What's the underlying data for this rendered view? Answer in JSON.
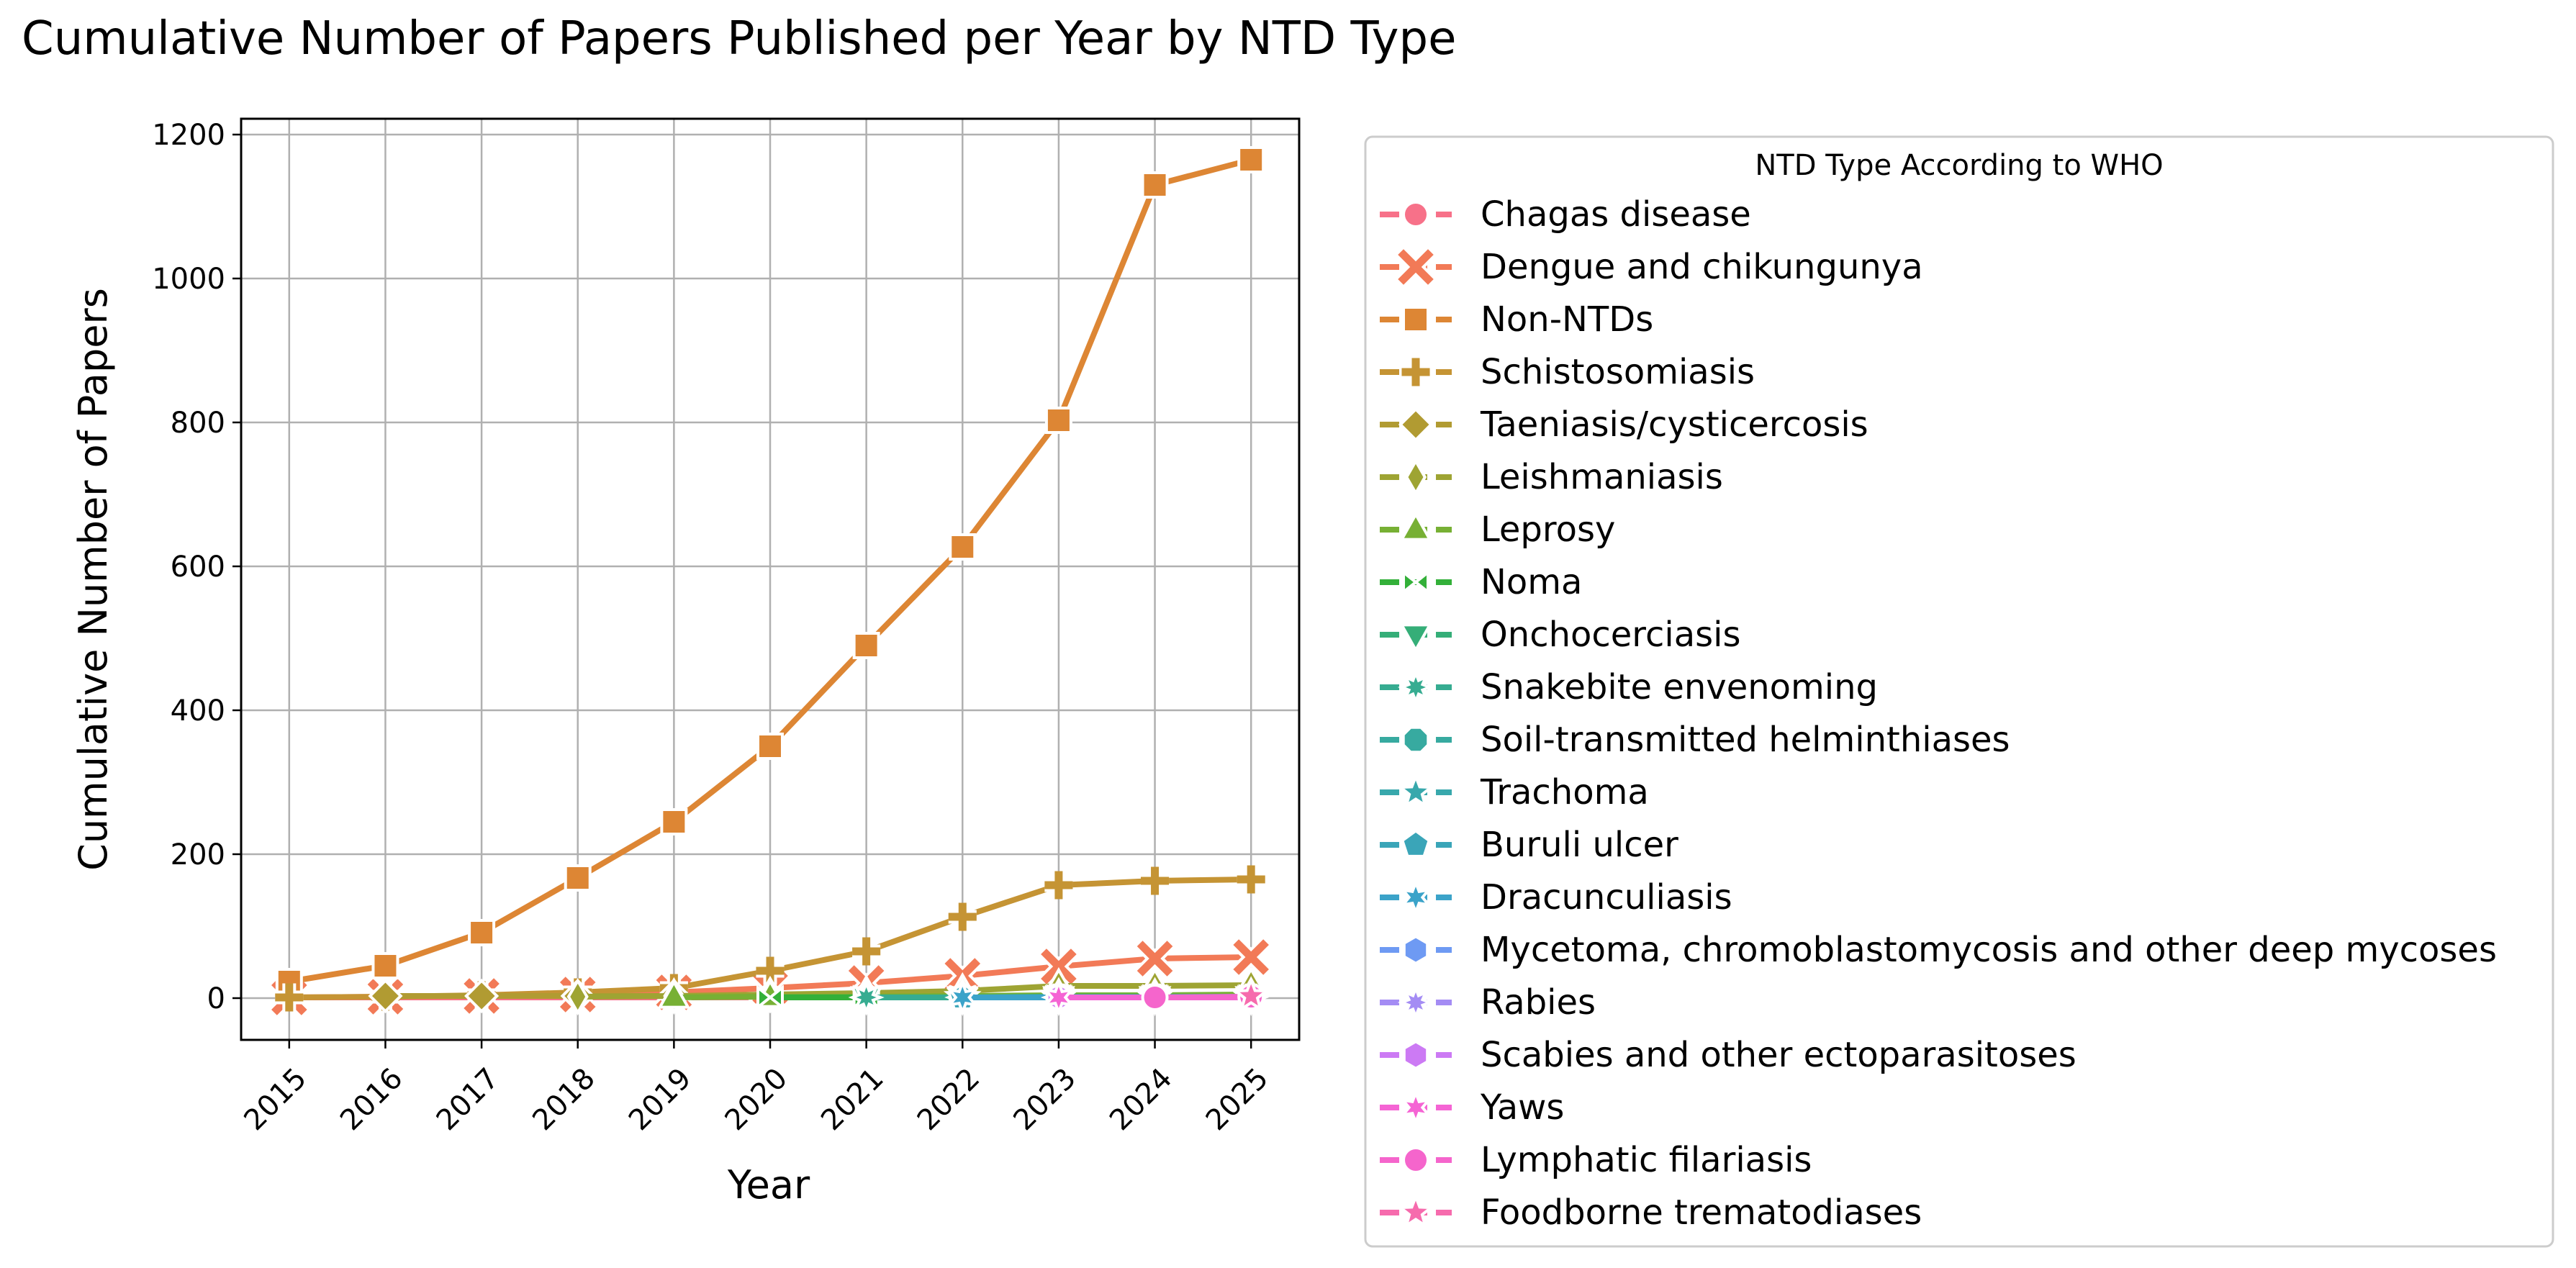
{
  "chart_data": {
    "type": "line",
    "title": "Cumulative Number of Papers Published per Year by NTD Type",
    "xlabel": "Year",
    "ylabel": "Cumulative Number of Papers",
    "x": [
      2015,
      2016,
      2017,
      2018,
      2019,
      2020,
      2021,
      2022,
      2023,
      2024,
      2025
    ],
    "ylim": [
      -58,
      1222
    ],
    "yticks": [
      0,
      200,
      400,
      600,
      800,
      1000,
      1200
    ],
    "grid": true,
    "legend_title": "NTD Type According to WHO",
    "legend_position": "outside-right",
    "series": [
      {
        "name": "Chagas disease",
        "color": "#f77189",
        "marker": "circle",
        "x": [
          2015,
          2016,
          2017,
          2018,
          2019,
          2020,
          2021,
          2022,
          2023,
          2024,
          2025
        ],
        "values": [
          1,
          1,
          1,
          1,
          1,
          1,
          1,
          1,
          1,
          1,
          1
        ]
      },
      {
        "name": "Dengue and chikungunya",
        "color": "#f27a57",
        "marker": "x",
        "x": [
          2015,
          2016,
          2017,
          2018,
          2019,
          2020,
          2021,
          2022,
          2023,
          2024,
          2025
        ],
        "values": [
          1,
          2,
          3,
          5,
          8,
          14,
          21,
          31,
          44,
          55,
          57
        ]
      },
      {
        "name": "Non-NTDs",
        "color": "#dd8634",
        "marker": "square",
        "x": [
          2015,
          2016,
          2017,
          2018,
          2019,
          2020,
          2021,
          2022,
          2023,
          2024,
          2025
        ],
        "values": [
          23,
          45,
          91,
          167,
          245,
          350,
          490,
          627,
          803,
          1130,
          1165
        ]
      },
      {
        "name": "Schistosomiasis",
        "color": "#c59434",
        "marker": "plus",
        "x": [
          2015,
          2016,
          2017,
          2018,
          2019,
          2020,
          2021,
          2022,
          2023,
          2024,
          2025
        ],
        "values": [
          1,
          2,
          4,
          8,
          14,
          38,
          65,
          113,
          157,
          163,
          165
        ]
      },
      {
        "name": "Taeniasis/cysticercosis",
        "color": "#b19b32",
        "marker": "diamond",
        "x": [
          2016,
          2017,
          2018,
          2019,
          2020,
          2021,
          2022,
          2023,
          2024,
          2025
        ],
        "values": [
          3,
          3,
          3,
          3,
          3,
          3,
          3,
          3,
          3,
          3
        ]
      },
      {
        "name": "Leishmaniasis",
        "color": "#9ea433",
        "marker": "thin-diamond",
        "x": [
          2018,
          2019,
          2020,
          2021,
          2022,
          2023,
          2024,
          2025
        ],
        "values": [
          2,
          3,
          5,
          7,
          10,
          17,
          17,
          18
        ]
      },
      {
        "name": "Leprosy",
        "color": "#77b034",
        "marker": "triangle-up",
        "x": [
          2019,
          2020,
          2021,
          2022,
          2023,
          2024,
          2025
        ],
        "values": [
          1,
          2,
          2,
          3,
          4,
          4,
          5
        ]
      },
      {
        "name": "Noma",
        "color": "#33b039",
        "marker": "bowtie",
        "x": [
          2020,
          2021,
          2022,
          2023,
          2024,
          2025
        ],
        "values": [
          1,
          1,
          1,
          1,
          1,
          1
        ]
      },
      {
        "name": "Onchocerciasis",
        "color": "#35ae78",
        "marker": "triangle-down",
        "x": [
          2021,
          2022,
          2023,
          2024,
          2025
        ],
        "values": [
          1,
          1,
          1,
          1,
          1
        ]
      },
      {
        "name": "Snakebite envenoming",
        "color": "#36ac91",
        "marker": "star8",
        "x": [
          2021,
          2022,
          2023,
          2024,
          2025
        ],
        "values": [
          1,
          1,
          2,
          2,
          2
        ]
      },
      {
        "name": "Soil-transmitted helminthiases",
        "color": "#37aaa0",
        "marker": "octagon",
        "x": [
          2022,
          2023,
          2024,
          2025
        ],
        "values": [
          1,
          1,
          1,
          1
        ]
      },
      {
        "name": "Trachoma",
        "color": "#38a8ac",
        "marker": "star",
        "x": [
          2022,
          2023,
          2024,
          2025
        ],
        "values": [
          1,
          1,
          1,
          1
        ]
      },
      {
        "name": "Buruli ulcer",
        "color": "#3aa5b8",
        "marker": "pentagon",
        "x": [
          2022,
          2023,
          2024,
          2025
        ],
        "values": [
          1,
          1,
          1,
          1
        ]
      },
      {
        "name": "Dracunculiasis",
        "color": "#3ba3c9",
        "marker": "star6",
        "x": [
          2022,
          2023,
          2024,
          2025
        ],
        "values": [
          1,
          1,
          1,
          1
        ]
      },
      {
        "name": "Mycetoma, chromoblastomycosis and other deep mycoses",
        "color": "#6e9af3",
        "marker": "hexagon",
        "x": [
          2023,
          2024,
          2025
        ],
        "values": [
          1,
          1,
          1
        ]
      },
      {
        "name": "Rabies",
        "color": "#a48cf4",
        "marker": "star8",
        "x": [
          2023,
          2024,
          2025
        ],
        "values": [
          1,
          1,
          1
        ]
      },
      {
        "name": "Scabies and other ectoparasitoses",
        "color": "#cc7af4",
        "marker": "hexagon",
        "x": [
          2023,
          2024,
          2025
        ],
        "values": [
          1,
          1,
          1
        ]
      },
      {
        "name": "Yaws",
        "color": "#f564d4",
        "marker": "star6",
        "x": [
          2023,
          2024,
          2025
        ],
        "values": [
          1,
          1,
          1
        ]
      },
      {
        "name": "Lymphatic filariasis",
        "color": "#f565cc",
        "marker": "circle",
        "x": [
          2024,
          2025
        ],
        "values": [
          1,
          2
        ]
      },
      {
        "name": "Foodborne trematodiases",
        "color": "#f66bad",
        "marker": "star",
        "x": [
          2025
        ],
        "values": [
          3
        ]
      }
    ]
  }
}
